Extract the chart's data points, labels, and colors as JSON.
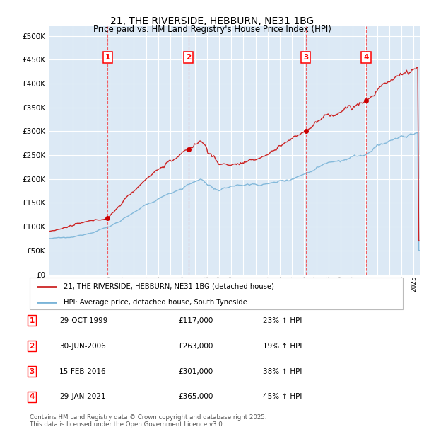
{
  "title": "21, THE RIVERSIDE, HEBBURN, NE31 1BG",
  "subtitle": "Price paid vs. HM Land Registry's House Price Index (HPI)",
  "ylim": [
    0,
    520000
  ],
  "yticks": [
    0,
    50000,
    100000,
    150000,
    200000,
    250000,
    300000,
    350000,
    400000,
    450000,
    500000
  ],
  "year_start": 1995,
  "year_end": 2025,
  "bg_color": "#dce9f5",
  "grid_color": "#ffffff",
  "sale_markers": [
    {
      "num": 1,
      "year": 1999.83,
      "price": 117000
    },
    {
      "num": 2,
      "year": 2006.5,
      "price": 263000
    },
    {
      "num": 3,
      "year": 2016.12,
      "price": 301000
    },
    {
      "num": 4,
      "year": 2021.08,
      "price": 365000
    }
  ],
  "legend_label_red": "21, THE RIVERSIDE, HEBBURN, NE31 1BG (detached house)",
  "legend_label_blue": "HPI: Average price, detached house, South Tyneside",
  "footer": "Contains HM Land Registry data © Crown copyright and database right 2025.\nThis data is licensed under the Open Government Licence v3.0.",
  "table_rows": [
    {
      "num": 1,
      "date": "29-OCT-1999",
      "price": "£117,000",
      "pct": "23% ↑ HPI"
    },
    {
      "num": 2,
      "date": "30-JUN-2006",
      "price": "£263,000",
      "pct": "19% ↑ HPI"
    },
    {
      "num": 3,
      "date": "15-FEB-2016",
      "price": "£301,000",
      "pct": "38% ↑ HPI"
    },
    {
      "num": 4,
      "date": "29-JAN-2021",
      "price": "£365,000",
      "pct": "45% ↑ HPI"
    }
  ]
}
